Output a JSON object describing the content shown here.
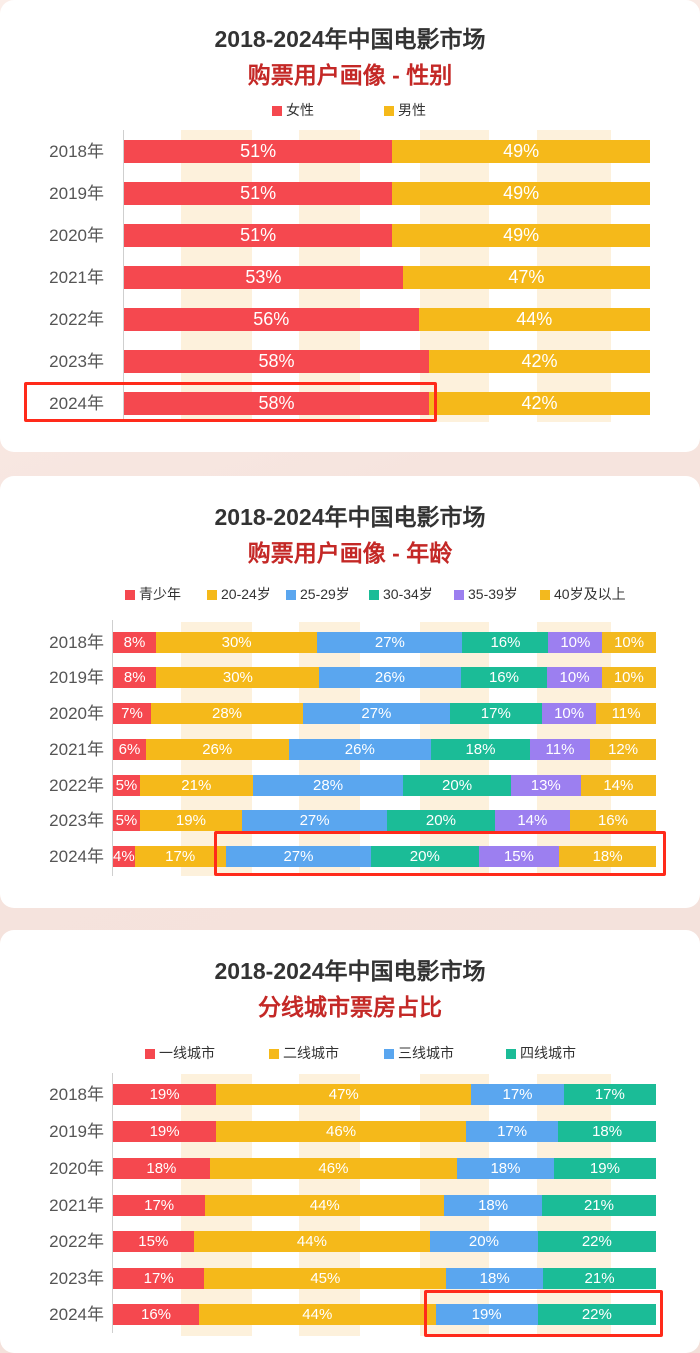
{
  "colors": {
    "red": "#f5484f",
    "yellow": "#f5b91a",
    "blue": "#5aa6ef",
    "teal": "#1bbc97",
    "purple": "#9c7ff0",
    "amber": "#f3b91e",
    "highlight": "#ff2a1a"
  },
  "chart_data": [
    {
      "type": "bar",
      "stacked": true,
      "orientation": "horizontal",
      "title": "2018-2024年中国电影市场",
      "subtitle": "购票用户画像 - 性别",
      "categories": [
        "2018年",
        "2019年",
        "2020年",
        "2021年",
        "2022年",
        "2023年",
        "2024年"
      ],
      "series": [
        {
          "name": "女性",
          "color": "red",
          "values": [
            51,
            51,
            51,
            53,
            56,
            58,
            58
          ]
        },
        {
          "name": "男性",
          "color": "yellow",
          "values": [
            49,
            49,
            49,
            47,
            44,
            42,
            42
          ]
        }
      ],
      "labels": [
        [
          "51%",
          "51%",
          "51%",
          "53%",
          "56%",
          "58%",
          "58%"
        ],
        [
          "49%",
          "49%",
          "49%",
          "47%",
          "44%",
          "42%",
          "42%"
        ]
      ],
      "legend_position": "top",
      "highlighted_category": "2024年"
    },
    {
      "type": "bar",
      "stacked": true,
      "orientation": "horizontal",
      "title": "2018-2024年中国电影市场",
      "subtitle": "购票用户画像 - 年龄",
      "categories": [
        "2018年",
        "2019年",
        "2020年",
        "2021年",
        "2022年",
        "2023年",
        "2024年"
      ],
      "series": [
        {
          "name": "青少年",
          "color": "red",
          "values": [
            8,
            8,
            7,
            6,
            5,
            5,
            4
          ]
        },
        {
          "name": "20-24岁",
          "color": "yellow",
          "values": [
            30,
            30,
            28,
            26,
            21,
            19,
            17
          ]
        },
        {
          "name": "25-29岁",
          "color": "blue",
          "values": [
            27,
            26,
            27,
            26,
            28,
            27,
            27
          ]
        },
        {
          "name": "30-34岁",
          "color": "teal",
          "values": [
            16,
            16,
            17,
            18,
            20,
            20,
            20
          ]
        },
        {
          "name": "35-39岁",
          "color": "purple",
          "values": [
            10,
            10,
            10,
            11,
            13,
            14,
            15
          ]
        },
        {
          "name": "40岁及以上",
          "color": "amber",
          "values": [
            10,
            10,
            11,
            12,
            14,
            16,
            18
          ]
        }
      ],
      "labels": [
        [
          "8%",
          "8%",
          "7%",
          "6%",
          "5%",
          "5%",
          "4%"
        ],
        [
          "30%",
          "30%",
          "28%",
          "26%",
          "21%",
          "19%",
          "17%"
        ],
        [
          "27%",
          "26%",
          "27%",
          "26%",
          "28%",
          "27%",
          "27%"
        ],
        [
          "16%",
          "16%",
          "17%",
          "18%",
          "20%",
          "20%",
          "20%"
        ],
        [
          "10%",
          "10%",
          "10%",
          "11%",
          "13%",
          "14%",
          "15%"
        ],
        [
          "10%",
          "10%",
          "11%",
          "12%",
          "14%",
          "16%",
          "18%"
        ]
      ],
      "legend_position": "top",
      "highlighted_category": "2024年",
      "highlighted_series": [
        "25-29岁",
        "30-34岁",
        "35-39岁",
        "40岁及以上"
      ]
    },
    {
      "type": "bar",
      "stacked": true,
      "orientation": "horizontal",
      "title": "2018-2024年中国电影市场",
      "subtitle": "分线城市票房占比",
      "categories": [
        "2018年",
        "2019年",
        "2020年",
        "2021年",
        "2022年",
        "2023年",
        "2024年"
      ],
      "series": [
        {
          "name": "一线城市",
          "color": "red",
          "values": [
            19,
            19,
            18,
            17,
            15,
            17,
            16
          ]
        },
        {
          "name": "二线城市",
          "color": "yellow",
          "values": [
            47,
            46,
            46,
            44,
            44,
            45,
            44
          ]
        },
        {
          "name": "三线城市",
          "color": "blue",
          "values": [
            17,
            17,
            18,
            18,
            20,
            18,
            19
          ]
        },
        {
          "name": "四线城市",
          "color": "teal",
          "values": [
            17,
            18,
            19,
            21,
            22,
            21,
            22
          ]
        }
      ],
      "labels": [
        [
          "19%",
          "19%",
          "18%",
          "17%",
          "15%",
          "17%",
          "16%"
        ],
        [
          "47%",
          "46%",
          "46%",
          "44%",
          "44%",
          "45%",
          "44%"
        ],
        [
          "17%",
          "17%",
          "18%",
          "18%",
          "20%",
          "18%",
          "19%"
        ],
        [
          "17%",
          "18%",
          "19%",
          "21%",
          "22%",
          "21%",
          "22%"
        ]
      ],
      "legend_position": "top",
      "highlighted_category": "2024年",
      "highlighted_series": [
        "三线城市",
        "四线城市"
      ]
    }
  ]
}
